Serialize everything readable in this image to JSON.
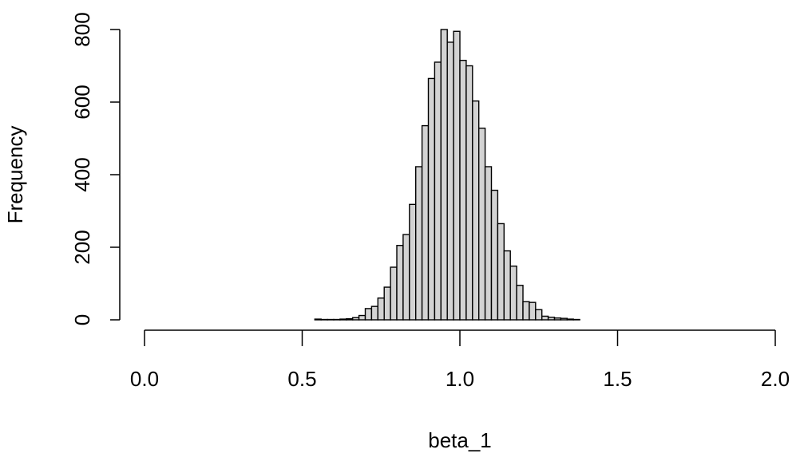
{
  "chart_data": {
    "type": "bar",
    "title": "",
    "xlabel": "beta_1",
    "ylabel": "Frequency",
    "xlim": [
      0.0,
      2.0
    ],
    "ylim": [
      0,
      800
    ],
    "x_ticks": [
      "0.0",
      "0.5",
      "1.0",
      "1.5",
      "2.0"
    ],
    "x_tick_values": [
      0.0,
      0.5,
      1.0,
      1.5,
      2.0
    ],
    "y_ticks": [
      "0",
      "200",
      "400",
      "600",
      "800"
    ],
    "y_tick_values": [
      0,
      200,
      400,
      600,
      800
    ],
    "bin_width": 0.02,
    "bin_starts": [
      0.54,
      0.56,
      0.58,
      0.6,
      0.62,
      0.64,
      0.66,
      0.68,
      0.7,
      0.72,
      0.74,
      0.76,
      0.78,
      0.8,
      0.82,
      0.84,
      0.86,
      0.88,
      0.9,
      0.92,
      0.94,
      0.96,
      0.98,
      1.0,
      1.02,
      1.04,
      1.06,
      1.08,
      1.1,
      1.12,
      1.14,
      1.16,
      1.18,
      1.2,
      1.22,
      1.24,
      1.26,
      1.28,
      1.3,
      1.32,
      1.34,
      1.36
    ],
    "values": [
      2,
      1,
      1,
      1,
      2,
      3,
      6,
      12,
      31,
      37,
      60,
      90,
      145,
      205,
      235,
      318,
      422,
      535,
      665,
      710,
      800,
      765,
      795,
      715,
      700,
      603,
      528,
      422,
      357,
      265,
      190,
      148,
      95,
      50,
      48,
      28,
      10,
      7,
      5,
      4,
      2,
      1
    ],
    "fill_color": "#d3d3d3",
    "edge_color": "#000000",
    "grid": false,
    "legend": "none"
  }
}
